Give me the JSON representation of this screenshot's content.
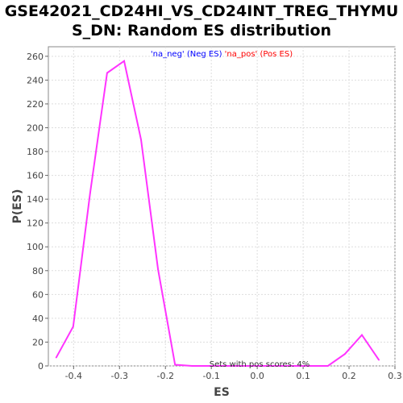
{
  "title_line1": "GSE42021_CD24HI_VS_CD24INT_TREG_THYMU",
  "title_line2": "S_DN: Random ES distribution",
  "chart_data": {
    "type": "line",
    "xlabel": "ES",
    "ylabel": "P(ES)",
    "xlim": [
      -0.455,
      0.3
    ],
    "ylim": [
      0,
      268
    ],
    "x_ticks": [
      -0.4,
      -0.3,
      -0.2,
      -0.1,
      0.0,
      0.1,
      0.2,
      0.3
    ],
    "x_tick_labels": [
      "-0.4",
      "-0.3",
      "-0.2",
      "-0.1",
      "0.0",
      "0.1",
      "0.2",
      "0.3"
    ],
    "y_ticks": [
      0,
      20,
      40,
      60,
      80,
      100,
      120,
      140,
      160,
      180,
      200,
      220,
      240,
      260
    ],
    "y_tick_labels": [
      "0",
      "20",
      "40",
      "60",
      "80",
      "100",
      "120",
      "140",
      "160",
      "180",
      "200",
      "220",
      "240",
      "260"
    ],
    "grid": true,
    "legend": {
      "placement": "top-center",
      "entries": [
        {
          "text": "'na_neg' (Neg ES)",
          "color": "#0000ff"
        },
        {
          "text": "'na_pos' (Pos ES)",
          "color": "#ff0000"
        }
      ]
    },
    "annotation": "Sets with pos scores: 4%",
    "series": [
      {
        "color": "#ff33ff",
        "x": [
          -0.438,
          -0.401,
          -0.364,
          -0.327,
          -0.29,
          -0.253,
          -0.216,
          -0.179,
          -0.142,
          -0.105,
          -0.068,
          -0.031,
          0.006,
          0.043,
          0.08,
          0.117,
          0.154,
          0.191,
          0.228,
          0.265
        ],
        "y": [
          7,
          33,
          145,
          246,
          256,
          190,
          81,
          1,
          0,
          0,
          0,
          0,
          0,
          0,
          0,
          0,
          0,
          10,
          26,
          5
        ]
      }
    ]
  }
}
